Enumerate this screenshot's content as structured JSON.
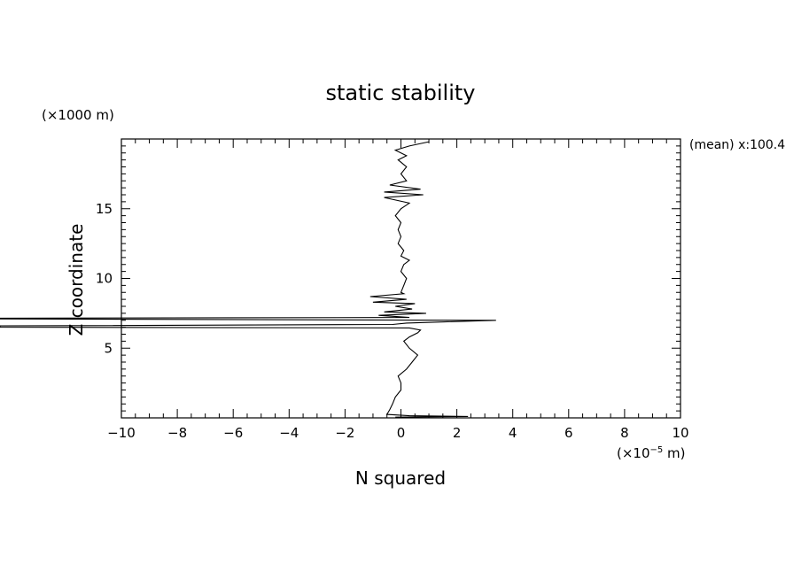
{
  "chart_data": {
    "type": "line",
    "title": "static stability",
    "xlabel": "N squared",
    "ylabel": "Z coordinate",
    "x_units": "(×10",
    "x_units_exp": "−5",
    "x_units_tail": " m)",
    "y_units": "(×1000 m)",
    "annotation": "(mean) x:100.4",
    "xlim": [
      -10,
      10
    ],
    "ylim": [
      0,
      20
    ],
    "x_ticks": [
      -10,
      -8,
      -6,
      -4,
      -2,
      0,
      2,
      4,
      6,
      8,
      10
    ],
    "x_tick_labels": [
      "−10",
      "−8",
      "−6",
      "−4",
      "−2",
      "0",
      "2",
      "4",
      "6",
      "8",
      "10"
    ],
    "y_ticks": [
      5,
      10,
      15
    ],
    "y_tick_labels": [
      "5",
      "10",
      "15"
    ],
    "grid": false,
    "series": [
      {
        "points": [
          [
            -0.2,
            0.05
          ],
          [
            2.4,
            0.1
          ],
          [
            0.3,
            0.15
          ],
          [
            -0.5,
            0.25
          ],
          [
            -0.4,
            0.6
          ],
          [
            -0.3,
            1.0
          ],
          [
            -0.2,
            1.5
          ],
          [
            0.0,
            2.0
          ],
          [
            0.0,
            2.5
          ],
          [
            -0.1,
            3.0
          ],
          [
            0.2,
            3.5
          ],
          [
            0.4,
            4.0
          ],
          [
            0.6,
            4.5
          ],
          [
            0.3,
            5.0
          ],
          [
            0.1,
            5.5
          ],
          [
            0.3,
            5.8
          ],
          [
            0.6,
            6.1
          ],
          [
            0.7,
            6.3
          ],
          [
            0.3,
            6.45
          ],
          [
            -15.0,
            6.5
          ],
          [
            -15.0,
            6.6
          ],
          [
            -0.3,
            6.7
          ],
          [
            0.2,
            6.8
          ],
          [
            3.4,
            7.0
          ],
          [
            -15.0,
            7.1
          ],
          [
            -15.0,
            7.15
          ],
          [
            0.3,
            7.2
          ],
          [
            -0.8,
            7.35
          ],
          [
            0.9,
            7.5
          ],
          [
            -0.6,
            7.6
          ],
          [
            0.4,
            7.8
          ],
          [
            -0.2,
            8.0
          ],
          [
            0.5,
            8.2
          ],
          [
            -1.0,
            8.3
          ],
          [
            0.2,
            8.5
          ],
          [
            -1.1,
            8.7
          ],
          [
            0.1,
            8.9
          ],
          [
            0.0,
            9.0
          ],
          [
            0.1,
            9.5
          ],
          [
            0.2,
            10.0
          ],
          [
            0.0,
            10.5
          ],
          [
            0.1,
            11.0
          ],
          [
            0.3,
            11.3
          ],
          [
            0.0,
            11.6
          ],
          [
            0.1,
            12.0
          ],
          [
            -0.1,
            12.5
          ],
          [
            0.0,
            13.0
          ],
          [
            -0.1,
            13.5
          ],
          [
            0.0,
            14.0
          ],
          [
            -0.2,
            14.5
          ],
          [
            0.0,
            15.0
          ],
          [
            0.3,
            15.4
          ],
          [
            -0.6,
            15.8
          ],
          [
            0.8,
            16.0
          ],
          [
            -0.6,
            16.2
          ],
          [
            0.7,
            16.4
          ],
          [
            -0.4,
            16.7
          ],
          [
            0.2,
            17.0
          ],
          [
            0.0,
            17.5
          ],
          [
            0.2,
            18.0
          ],
          [
            -0.1,
            18.5
          ],
          [
            0.2,
            18.8
          ],
          [
            -0.2,
            19.2
          ],
          [
            0.3,
            19.5
          ],
          [
            1.0,
            19.8
          ]
        ]
      }
    ]
  }
}
